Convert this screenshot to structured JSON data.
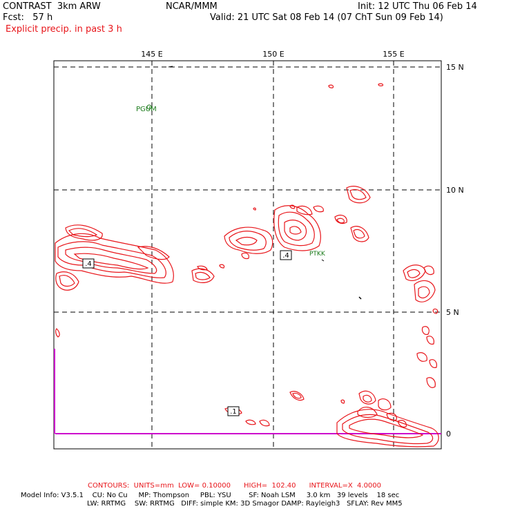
{
  "header": {
    "model": "CONTRAST  3km ARW",
    "org": "NCAR/MMM",
    "init": "Init: 12 UTC Thu 06 Feb 14",
    "fcst": "Fcst:   57 h",
    "valid": "Valid: 21 UTC Sat 08 Feb 14 (07 ChT Sun 09 Feb 14)",
    "field": "Explicit precip. in past 3 h"
  },
  "map": {
    "lon_labels": [
      "145 E",
      "150 E",
      "155 E"
    ],
    "lat_labels": [
      "15 N",
      "10 N",
      "5 N",
      "0"
    ],
    "stations": [
      "PGUM",
      "PTKK"
    ],
    "contour_labels": [
      ".4",
      ".4",
      ".1"
    ],
    "colors": {
      "contour": "#e8151a",
      "station": "#1a7a1a",
      "equator": "#cc00cc",
      "grid": "#000000"
    }
  },
  "footer": {
    "contours": "CONTOURS:  UNITS=mm  LOW= 0.10000      HIGH=  102.40      INTERVAL=X  4.0000",
    "info1": "Model Info: V3.5.1    CU: No Cu     MP: Thompson     PBL: YSU        SF: Noah LSM     3.0 km   39 levels    18 sec",
    "info2": "LW: RRTMG    SW: RRTMG   DIFF: simple KM: 3D Smagor DAMP: Rayleigh3   SFLAY: Rev MM5"
  }
}
